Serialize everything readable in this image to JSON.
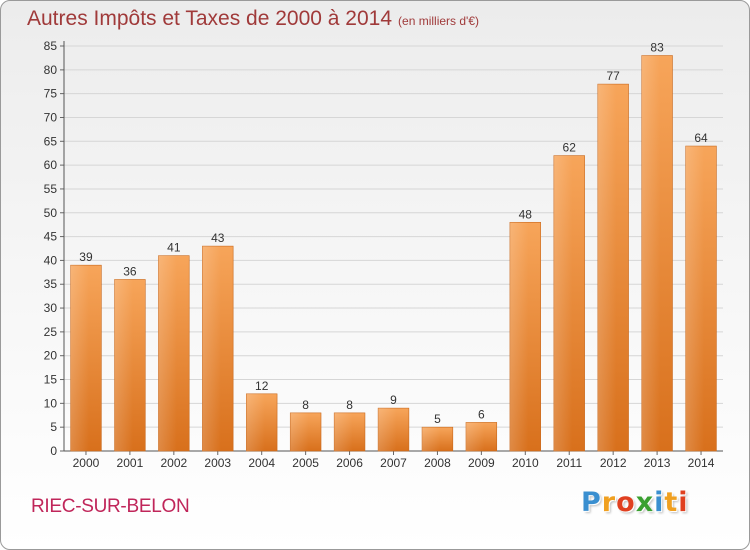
{
  "chart_data": {
    "type": "bar",
    "title": "Autres Impôts et Taxes de 2000 à 2014",
    "unit_label": "(en milliers d'€)",
    "categories": [
      "2000",
      "2001",
      "2002",
      "2003",
      "2004",
      "2005",
      "2006",
      "2007",
      "2008",
      "2009",
      "2010",
      "2011",
      "2012",
      "2013",
      "2014"
    ],
    "values": [
      39,
      36,
      41,
      43,
      12,
      8,
      8,
      9,
      5,
      6,
      48,
      62,
      77,
      83,
      64
    ],
    "ylim": [
      0,
      85
    ],
    "yticks": [
      0,
      5,
      10,
      15,
      20,
      25,
      30,
      35,
      40,
      45,
      50,
      55,
      60,
      65,
      70,
      75,
      80,
      85
    ],
    "grid": true,
    "bar_color": "#f0903a"
  },
  "footer": {
    "commune": "RIEC-SUR-BELON",
    "logo": {
      "letters": [
        "P",
        "r",
        "o",
        "x",
        "i",
        "t",
        "i"
      ],
      "colors": [
        "#3a8fd0",
        "#f0a020",
        "#e04020",
        "#3aa030",
        "#3a8fd0",
        "#f0a020",
        "#e04020"
      ]
    }
  }
}
